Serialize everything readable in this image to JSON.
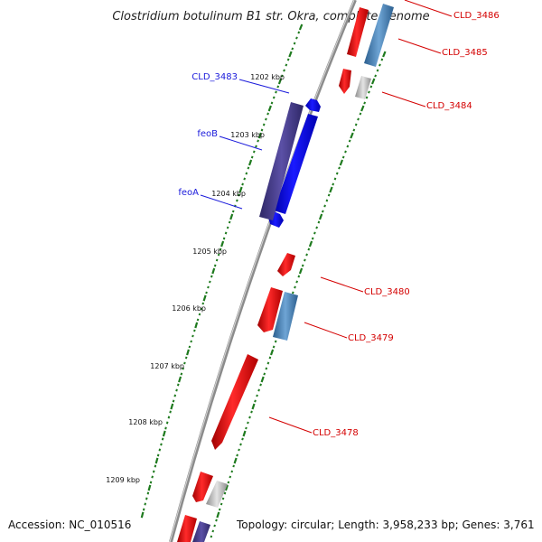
{
  "title": "Clostridium botulinum B1 str. Okra, complete genome",
  "accession": "Accession: NC_010516",
  "topology": "Topology: circular; Length: 3,958,233 bp; Genes: 3,761",
  "colors": {
    "background": "#ffffff",
    "backbone": "#8c8c8c",
    "tick_green": "#1e7a1e",
    "gene_red": "#ee1010",
    "gene_blue": "#1010e6",
    "gene_darkblue": "#4a3f8a",
    "gene_steelblue": "#4a86bb",
    "gene_gray": "#bdbdbd",
    "label_blue": "#1a1adb",
    "label_red": "#d40000"
  },
  "kbp_labels": [
    "1202 kbp",
    "1203 kbp",
    "1204 kbp",
    "1205 kbp",
    "1206 kbp",
    "1207 kbp",
    "1208 kbp",
    "1209 kbp"
  ],
  "gene_labels_left": [
    "CLD_3483",
    "feoB",
    "feoA"
  ],
  "gene_labels_right": [
    "CLD_3486",
    "CLD_3485",
    "CLD_3484",
    "CLD_3480",
    "CLD_3479",
    "CLD_3478"
  ]
}
